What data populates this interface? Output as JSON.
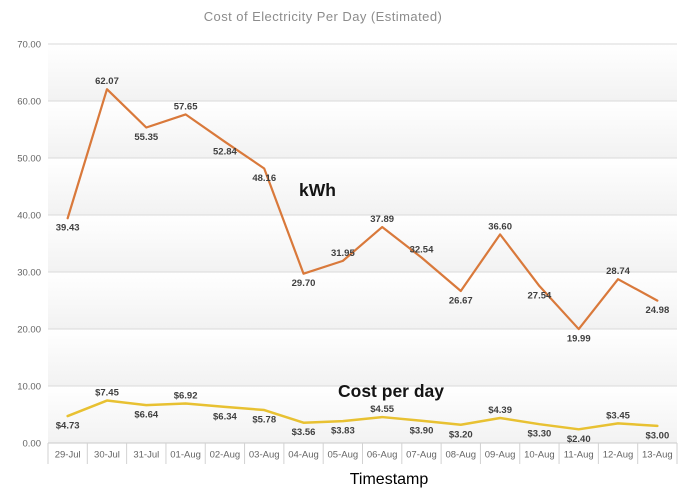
{
  "title": "Cost of Electricity Per Day (Estimated)",
  "annotations": {
    "kwh": "kWh",
    "cost": "Cost per day"
  },
  "x_axis_title": "Timestamp",
  "colors": {
    "kwh_line": "#d9793b",
    "cost_line": "#e8c132",
    "grid": "#dadada",
    "axis_baseline": "#c9c9c9",
    "separator": "#d2d2d2",
    "band_fade": "#f2f2f2",
    "tick_text": "#646464",
    "data_label_text": "#3f3f3f",
    "title_text": "#8c8c8c"
  },
  "chart_data": {
    "type": "line",
    "title": "Cost of Electricity Per Day (Estimated)",
    "xlabel": "Timestamp",
    "ylabel": "",
    "ylim": [
      0,
      70
    ],
    "ytick_step": 10,
    "yticks": [
      "70.00",
      "60.00",
      "50.00",
      "40.00",
      "30.00",
      "20.00",
      "10.00",
      "0.00"
    ],
    "grid": true,
    "legend_position": "none (bold inline text annotations on plot)",
    "categories": [
      "29-Jul",
      "30-Jul",
      "31-Jul",
      "01-Aug",
      "02-Aug",
      "03-Aug",
      "04-Aug",
      "05-Aug",
      "06-Aug",
      "07-Aug",
      "08-Aug",
      "09-Aug",
      "10-Aug",
      "11-Aug",
      "12-Aug",
      "13-Aug"
    ],
    "series": [
      {
        "name": "kWh",
        "color": "#d9793b",
        "values": [
          39.43,
          62.07,
          55.35,
          57.65,
          52.84,
          48.16,
          29.7,
          31.95,
          37.89,
          32.54,
          26.67,
          36.6,
          27.54,
          19.99,
          28.74,
          24.98
        ],
        "labels": [
          "39.43",
          "62.07",
          "55.35",
          "57.65",
          "52.84",
          "48.16",
          "29.70",
          "31.95",
          "37.89",
          "32.54",
          "26.67",
          "36.60",
          "27.54",
          "19.99",
          "28.74",
          "24.98"
        ],
        "label_pos": [
          "below",
          "above",
          "below",
          "above",
          "below",
          "below",
          "below",
          "above",
          "above",
          "above",
          "below",
          "above",
          "below",
          "below",
          "above",
          "below"
        ]
      },
      {
        "name": "Cost per day",
        "color": "#e8c132",
        "values": [
          4.73,
          7.45,
          6.64,
          6.92,
          6.34,
          5.78,
          3.56,
          3.83,
          4.55,
          3.9,
          3.2,
          4.39,
          3.3,
          2.4,
          3.45,
          3.0
        ],
        "labels": [
          "$4.73",
          "$7.45",
          "$6.64",
          "$6.92",
          "$6.34",
          "$5.78",
          "$3.56",
          "$3.83",
          "$4.55",
          "$3.90",
          "$3.20",
          "$4.39",
          "$3.30",
          "$2.40",
          "$3.45",
          "$3.00"
        ],
        "label_pos": [
          "below",
          "above",
          "below",
          "above",
          "below",
          "below",
          "below",
          "below",
          "above",
          "below",
          "below",
          "above",
          "below",
          "below",
          "above",
          "below"
        ]
      }
    ]
  }
}
